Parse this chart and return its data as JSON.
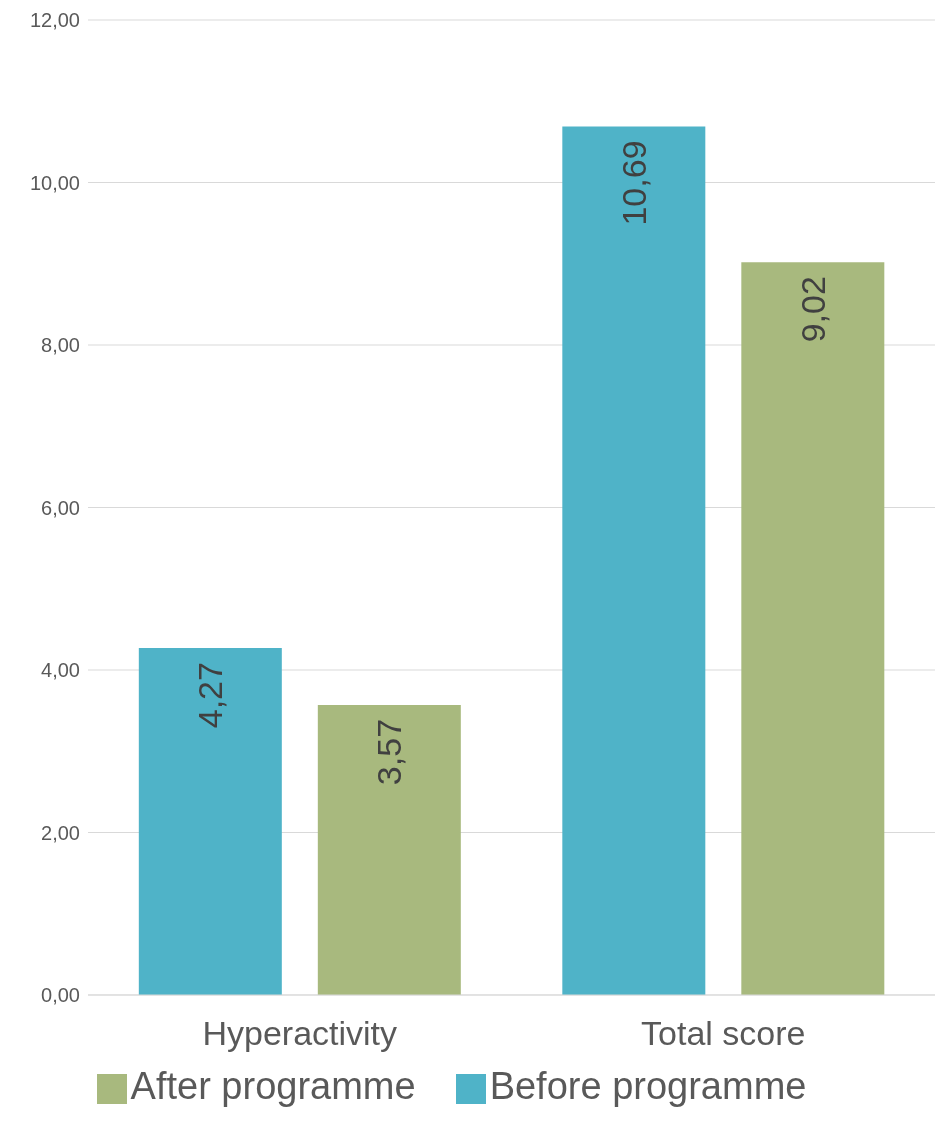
{
  "chart_data": {
    "type": "bar",
    "categories": [
      "Hyperactivity",
      "Total score"
    ],
    "series": [
      {
        "name": "Before programme",
        "color": "#4fb3c8",
        "values": [
          4.27,
          10.69
        ],
        "value_labels": [
          "4,27",
          "10,69"
        ]
      },
      {
        "name": "After programme",
        "color": "#a8b97e",
        "values": [
          3.57,
          9.02
        ],
        "value_labels": [
          "3,57",
          "9,02"
        ]
      }
    ],
    "ylim": [
      0,
      12
    ],
    "yticks": [
      {
        "value": 0,
        "label": "0,00"
      },
      {
        "value": 2,
        "label": "2,00"
      },
      {
        "value": 4,
        "label": "4,00"
      },
      {
        "value": 6,
        "label": "6,00"
      },
      {
        "value": 8,
        "label": "8,00"
      },
      {
        "value": 10,
        "label": "10,00"
      },
      {
        "value": 12,
        "label": "12,00"
      }
    ],
    "grid": "y",
    "legend": "bottom"
  }
}
